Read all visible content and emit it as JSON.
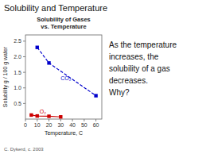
{
  "chart_data": {
    "type": "line",
    "title": "Solubility and Temperature",
    "subtitle": [
      "Solubility of Gases",
      "vs. Temperature"
    ],
    "x_label": "Temperature, C",
    "y_label": "Solubility g / 100 g water",
    "series": [
      {
        "x": [
          10,
          20,
          60
        ],
        "values": [
          2.3,
          1.8,
          0.75
        ],
        "color": "#0000cc",
        "marker": "square",
        "line_style": "dashed"
      },
      {
        "x": [
          5,
          10,
          20,
          30
        ],
        "values": [
          0.13,
          0.1,
          0.09,
          0.07
        ],
        "color": "#cc0000",
        "marker": "square",
        "line_style": "solid"
      }
    ],
    "annotations": [
      {
        "text": "CO₂",
        "x": 30,
        "y": 1.25,
        "color": "#0000cc"
      },
      {
        "text": "O₂",
        "x": 12,
        "y": 0.18,
        "color": "#cc0000"
      }
    ],
    "xlim": [
      0,
      65
    ],
    "ylim": [
      0,
      2.7
    ],
    "xticks": [
      0,
      10,
      20,
      30,
      40,
      50,
      60
    ],
    "yticks": [
      0.5,
      {
        "value": 1.0,
        "label": "1.0"
      },
      1.5,
      {
        "value": 2.0,
        "label": "2.0"
      },
      2.5
    ],
    "grid": false,
    "text_lines": [
      "As the temperature",
      "increases, the",
      "solubility of a gas",
      "decreases.",
      "Why?"
    ],
    "footnote": "C. Dykerd, c. 2003"
  }
}
